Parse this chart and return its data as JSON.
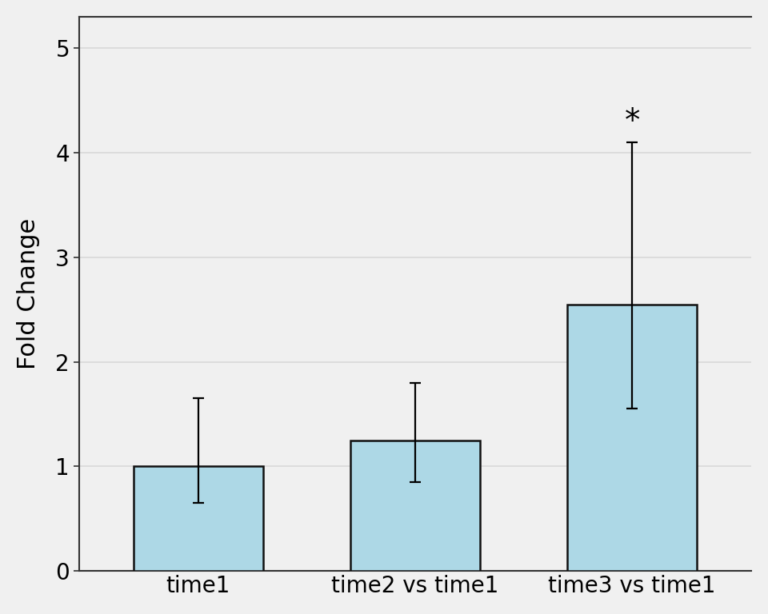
{
  "categories": [
    "time1",
    "time2 vs time1",
    "time3 vs time1"
  ],
  "values": [
    1.0,
    1.25,
    2.55
  ],
  "errors_lower": [
    0.35,
    0.4,
    1.0
  ],
  "errors_upper": [
    0.65,
    0.55,
    1.55
  ],
  "bar_color": "#ADD8E6",
  "bar_edge_color": "#111111",
  "ylabel": "Fold Change",
  "ylim": [
    0,
    5.3
  ],
  "yticks": [
    0,
    1,
    2,
    3,
    4,
    5
  ],
  "bar_width": 0.6,
  "significance": [
    false,
    false,
    true
  ],
  "significance_label": "*",
  "background_color": "#f0f0f0",
  "plot_bg_color": "#f0f0f0",
  "grid_color": "#d8d8d8",
  "ylabel_fontsize": 22,
  "tick_fontsize": 20,
  "sig_fontsize": 28,
  "capsize": 5,
  "error_linewidth": 1.6,
  "spine_color": "#333333",
  "xlim": [
    -0.55,
    2.55
  ]
}
